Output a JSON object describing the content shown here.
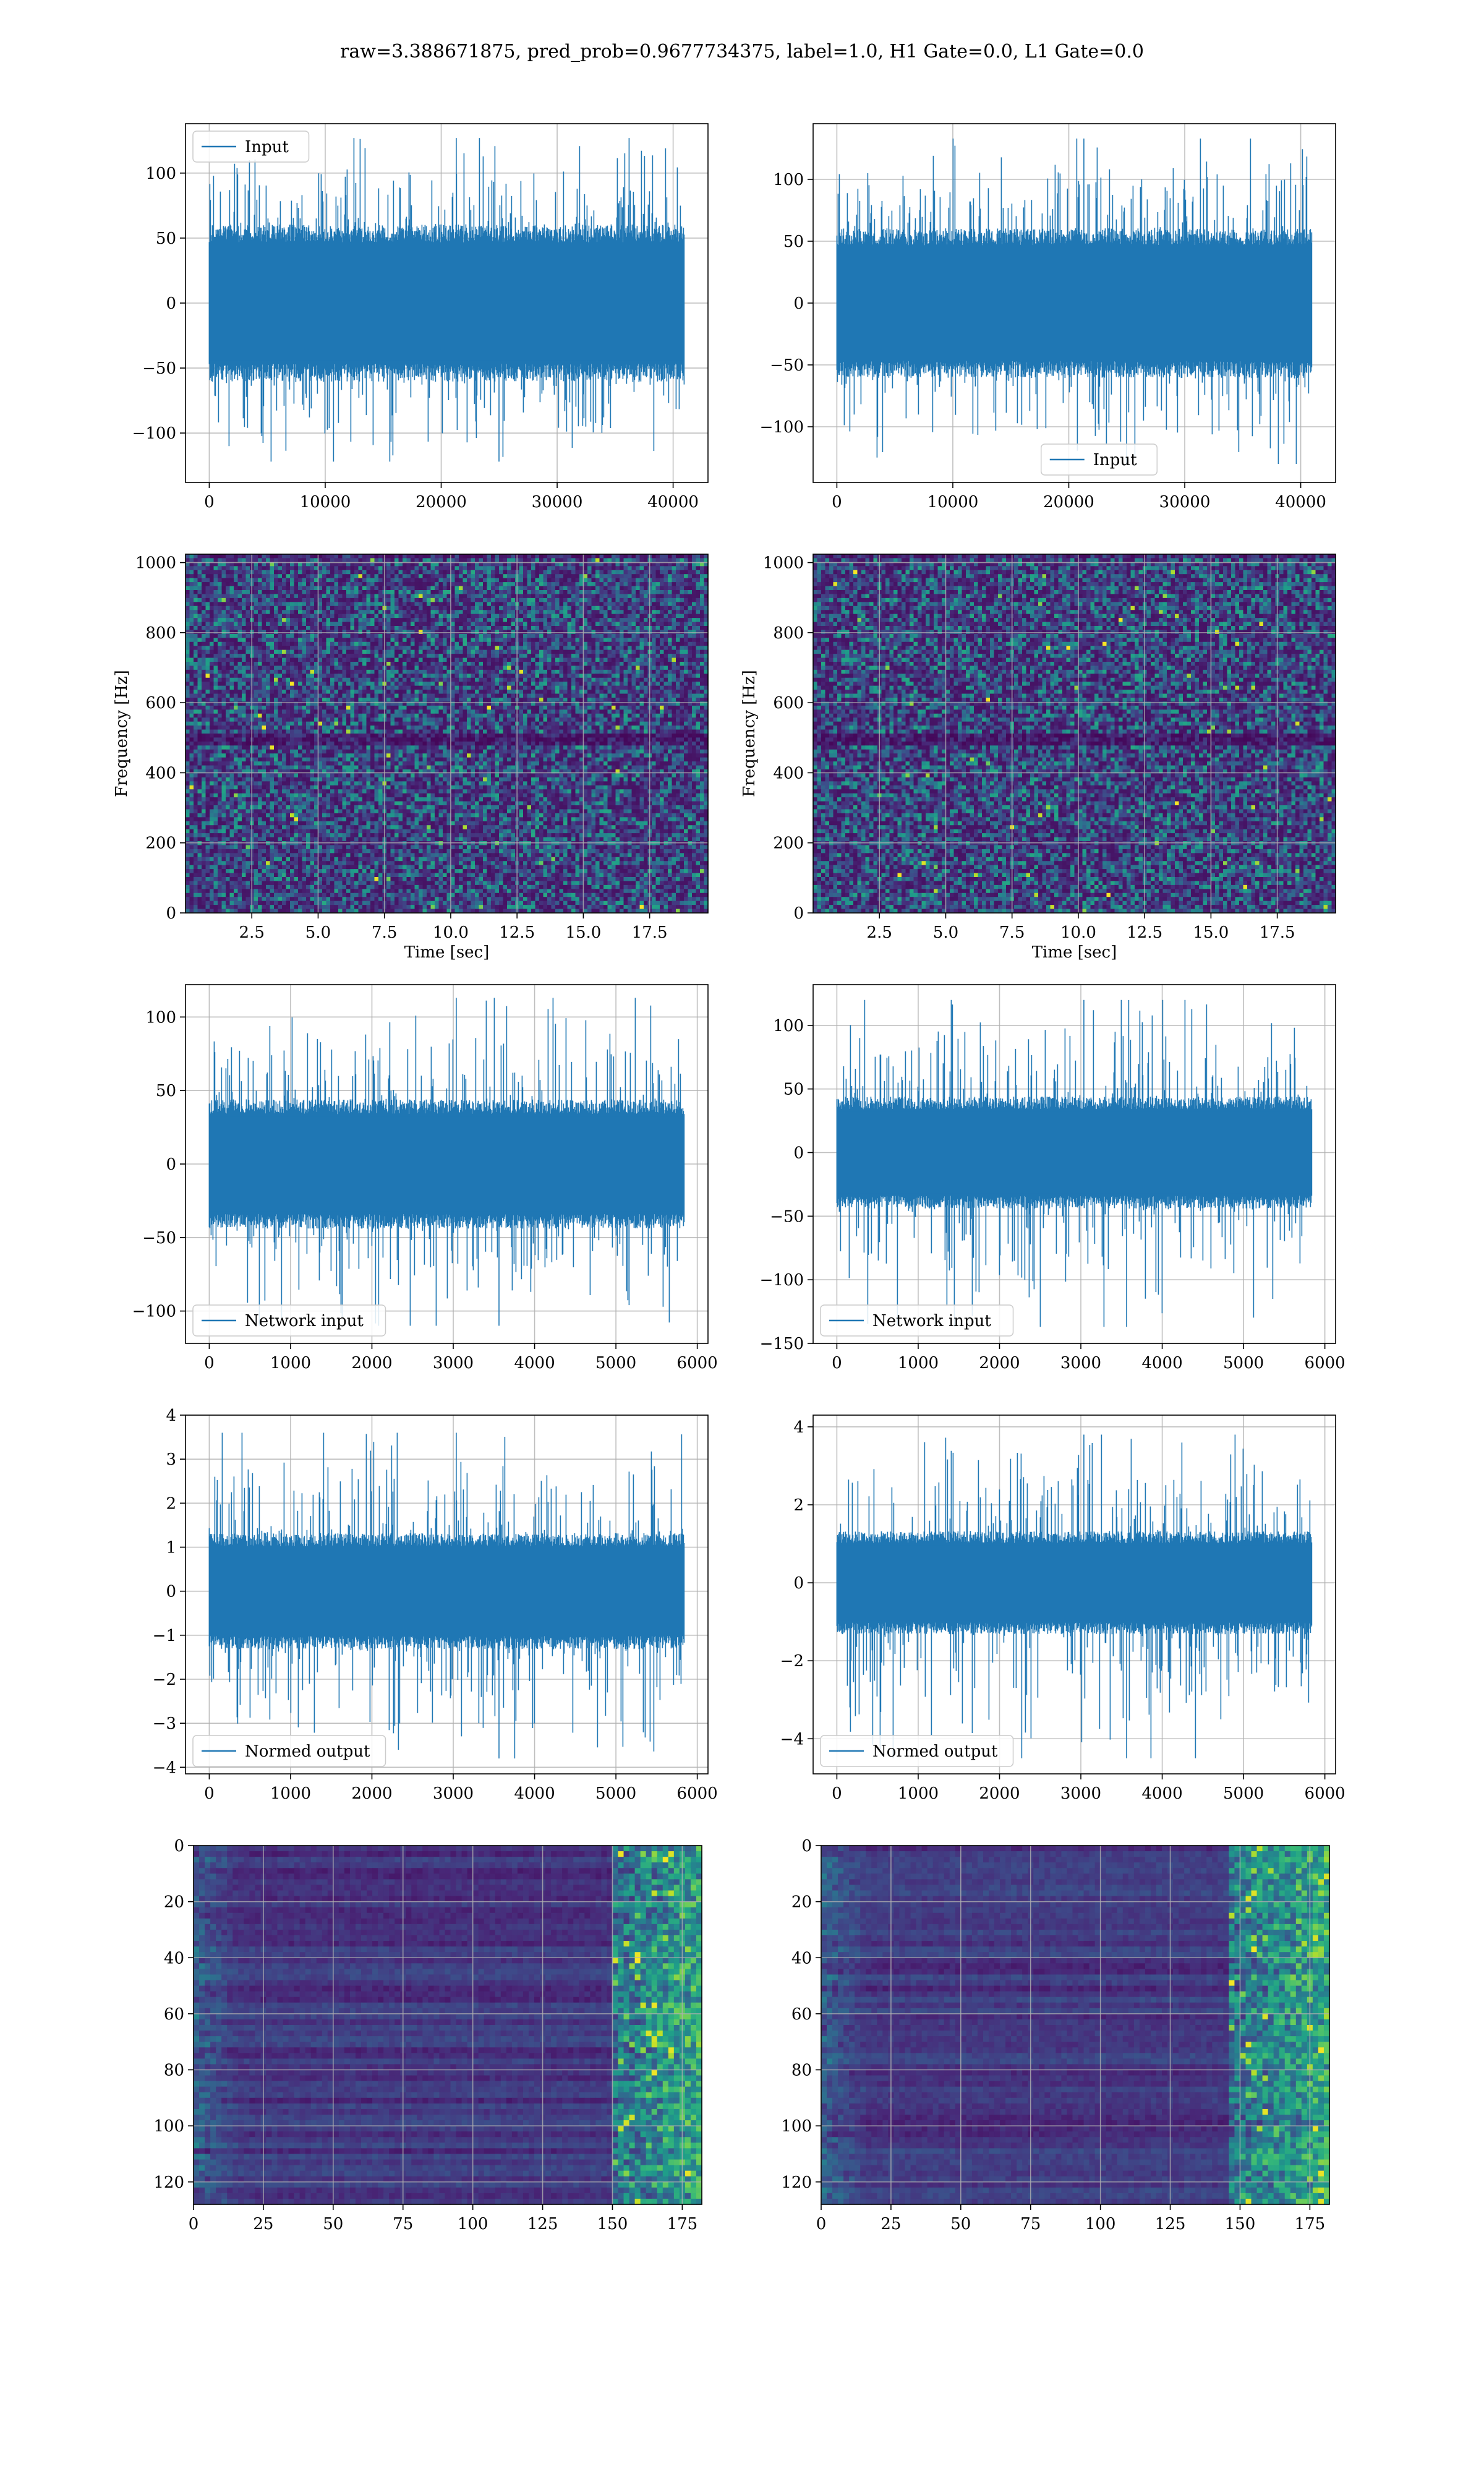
{
  "figure": {
    "suptitle": "raw=3.388671875, pred_prob=0.9677734375, label=1.0, H1 Gate=0.0, L1 Gate=0.0",
    "line_color": "#1f77b4",
    "grid_color": "#b0b0b0",
    "colormap": "viridis"
  },
  "chart_data": [
    {
      "id": "h1-input",
      "type": "line",
      "title": "",
      "xlabel": "",
      "ylabel": "",
      "xlim": [
        -2048,
        43008
      ],
      "ylim": [
        -138,
        138
      ],
      "xticks": [
        0,
        10000,
        20000,
        30000,
        40000
      ],
      "xtick_labels": [
        "0",
        "10000",
        "20000",
        "30000",
        "40000"
      ],
      "yticks": [
        -100,
        -50,
        0,
        50,
        100
      ],
      "ytick_labels": [
        "−100",
        "−50",
        "0",
        "50",
        "100"
      ],
      "grid": true,
      "legend": {
        "placement": "upper left",
        "entries": [
          "Input"
        ]
      },
      "series": [
        {
          "name": "Input",
          "x_range": [
            0,
            40960
          ],
          "envelope_center": 0,
          "envelope_half_width": 55,
          "peak_min": -122,
          "peak_max": 127
        }
      ]
    },
    {
      "id": "l1-input",
      "type": "line",
      "title": "",
      "xlabel": "",
      "ylabel": "",
      "xlim": [
        -2048,
        43008
      ],
      "ylim": [
        -145,
        145
      ],
      "xticks": [
        0,
        10000,
        20000,
        30000,
        40000
      ],
      "xtick_labels": [
        "0",
        "10000",
        "20000",
        "30000",
        "40000"
      ],
      "yticks": [
        -100,
        -50,
        0,
        50,
        100
      ],
      "ytick_labels": [
        "−100",
        "−50",
        "0",
        "50",
        "100"
      ],
      "grid": true,
      "legend": {
        "placement": "lower center",
        "entries": [
          "Input"
        ]
      },
      "series": [
        {
          "name": "Input",
          "x_range": [
            0,
            40960
          ],
          "envelope_center": 0,
          "envelope_half_width": 55,
          "peak_min": -130,
          "peak_max": 133
        }
      ]
    },
    {
      "id": "h1-spectrogram",
      "type": "heatmap",
      "title": "",
      "xlabel": "Time [sec]",
      "ylabel": "Frequency [Hz]",
      "xlim": [
        0,
        19.7
      ],
      "ylim": [
        0,
        1024
      ],
      "xticks": [
        2.5,
        5.0,
        7.5,
        10.0,
        12.5,
        15.0,
        17.5
      ],
      "xtick_labels": [
        "2.5",
        "5.0",
        "7.5",
        "10.0",
        "12.5",
        "15.0",
        "17.5"
      ],
      "yticks": [
        0,
        200,
        400,
        600,
        800,
        1000
      ],
      "ytick_labels": [
        "0",
        "200",
        "400",
        "600",
        "800",
        "1000"
      ],
      "grid": true,
      "dark_band_hz": 500
    },
    {
      "id": "l1-spectrogram",
      "type": "heatmap",
      "title": "",
      "xlabel": "Time [sec]",
      "ylabel": "Frequency [Hz]",
      "xlim": [
        0,
        19.7
      ],
      "ylim": [
        0,
        1024
      ],
      "xticks": [
        2.5,
        5.0,
        7.5,
        10.0,
        12.5,
        15.0,
        17.5
      ],
      "xtick_labels": [
        "2.5",
        "5.0",
        "7.5",
        "10.0",
        "12.5",
        "15.0",
        "17.5"
      ],
      "yticks": [
        0,
        200,
        400,
        600,
        800,
        1000
      ],
      "ytick_labels": [
        "0",
        "200",
        "400",
        "600",
        "800",
        "1000"
      ],
      "grid": true,
      "dark_band_hz": 500
    },
    {
      "id": "h1-network-input",
      "type": "line",
      "title": "",
      "xlabel": "",
      "ylabel": "",
      "xlim": [
        -292,
        6132
      ],
      "ylim": [
        -122,
        122
      ],
      "xticks": [
        0,
        1000,
        2000,
        3000,
        4000,
        5000,
        6000
      ],
      "xtick_labels": [
        "0",
        "1000",
        "2000",
        "3000",
        "4000",
        "5000",
        "6000"
      ],
      "yticks": [
        -100,
        -50,
        0,
        50,
        100
      ],
      "ytick_labels": [
        "−100",
        "−50",
        "0",
        "50",
        "100"
      ],
      "grid": true,
      "legend": {
        "placement": "lower left",
        "entries": [
          "Network input"
        ]
      },
      "series": [
        {
          "name": "Network input",
          "x_range": [
            0,
            5840
          ],
          "envelope_center": 0,
          "envelope_half_width": 40,
          "peak_min": -110,
          "peak_max": 113
        }
      ]
    },
    {
      "id": "l1-network-input",
      "type": "line",
      "title": "",
      "xlabel": "",
      "ylabel": "",
      "xlim": [
        -292,
        6132
      ],
      "ylim": [
        -150,
        132
      ],
      "xticks": [
        0,
        1000,
        2000,
        3000,
        4000,
        5000,
        6000
      ],
      "xtick_labels": [
        "0",
        "1000",
        "2000",
        "3000",
        "4000",
        "5000",
        "6000"
      ],
      "yticks": [
        -150,
        -100,
        -50,
        0,
        50,
        100
      ],
      "ytick_labels": [
        "−150",
        "−100",
        "−50",
        "0",
        "50",
        "100"
      ],
      "grid": true,
      "legend": {
        "placement": "lower left",
        "entries": [
          "Network input"
        ]
      },
      "series": [
        {
          "name": "Network input",
          "x_range": [
            0,
            5840
          ],
          "envelope_center": 0,
          "envelope_half_width": 40,
          "peak_min": -137,
          "peak_max": 120
        }
      ]
    },
    {
      "id": "h1-normed-output",
      "type": "line",
      "title": "",
      "xlabel": "",
      "ylabel": "",
      "xlim": [
        -292,
        6132
      ],
      "ylim": [
        -4.15,
        4.0
      ],
      "xticks": [
        0,
        1000,
        2000,
        3000,
        4000,
        5000,
        6000
      ],
      "xtick_labels": [
        "0",
        "1000",
        "2000",
        "3000",
        "4000",
        "5000",
        "6000"
      ],
      "yticks": [
        -4,
        -3,
        -2,
        -1,
        0,
        1,
        2,
        3,
        4
      ],
      "ytick_labels": [
        "−4",
        "−3",
        "−2",
        "−1",
        "0",
        "1",
        "2",
        "3",
        "4"
      ],
      "grid": true,
      "legend": {
        "placement": "lower left",
        "entries": [
          "Normed output"
        ]
      },
      "series": [
        {
          "name": "Normed output",
          "x_range": [
            0,
            5840
          ],
          "envelope_center": 0,
          "envelope_half_width": 1.2,
          "peak_min": -3.8,
          "peak_max": 3.6
        }
      ]
    },
    {
      "id": "l1-normed-output",
      "type": "line",
      "title": "",
      "xlabel": "",
      "ylabel": "",
      "xlim": [
        -292,
        6132
      ],
      "ylim": [
        -4.9,
        4.3
      ],
      "xticks": [
        0,
        1000,
        2000,
        3000,
        4000,
        5000,
        6000
      ],
      "xtick_labels": [
        "0",
        "1000",
        "2000",
        "3000",
        "4000",
        "5000",
        "6000"
      ],
      "yticks": [
        -4,
        -2,
        0,
        2,
        4
      ],
      "ytick_labels": [
        "−4",
        "−2",
        "0",
        "2",
        "4"
      ],
      "grid": true,
      "legend": {
        "placement": "lower left",
        "entries": [
          "Normed output"
        ]
      },
      "series": [
        {
          "name": "Normed output",
          "x_range": [
            0,
            5840
          ],
          "envelope_center": 0,
          "envelope_half_width": 1.2,
          "peak_min": -4.5,
          "peak_max": 3.8
        }
      ]
    },
    {
      "id": "h1-feature-map",
      "type": "heatmap",
      "title": "",
      "xlabel": "",
      "ylabel": "",
      "xlim": [
        0,
        182
      ],
      "ylim": [
        128,
        0
      ],
      "xticks": [
        0,
        25,
        50,
        75,
        100,
        125,
        150,
        175
      ],
      "xtick_labels": [
        "0",
        "25",
        "50",
        "75",
        "100",
        "125",
        "150",
        "175"
      ],
      "yticks": [
        0,
        20,
        40,
        60,
        80,
        100,
        120
      ],
      "ytick_labels": [
        "0",
        "20",
        "40",
        "60",
        "80",
        "100",
        "120"
      ],
      "grid": true,
      "rows": 128,
      "cols": 182,
      "hot_columns_start": 150
    },
    {
      "id": "l1-feature-map",
      "type": "heatmap",
      "title": "",
      "xlabel": "",
      "ylabel": "",
      "xlim": [
        0,
        182
      ],
      "ylim": [
        128,
        0
      ],
      "xticks": [
        0,
        25,
        50,
        75,
        100,
        125,
        150,
        175
      ],
      "xtick_labels": [
        "0",
        "25",
        "50",
        "75",
        "100",
        "125",
        "150",
        "175"
      ],
      "yticks": [
        0,
        20,
        40,
        60,
        80,
        100,
        120
      ],
      "ytick_labels": [
        "0",
        "20",
        "40",
        "60",
        "80",
        "100",
        "120"
      ],
      "grid": true,
      "rows": 128,
      "cols": 182,
      "hot_columns_start": 145
    }
  ]
}
